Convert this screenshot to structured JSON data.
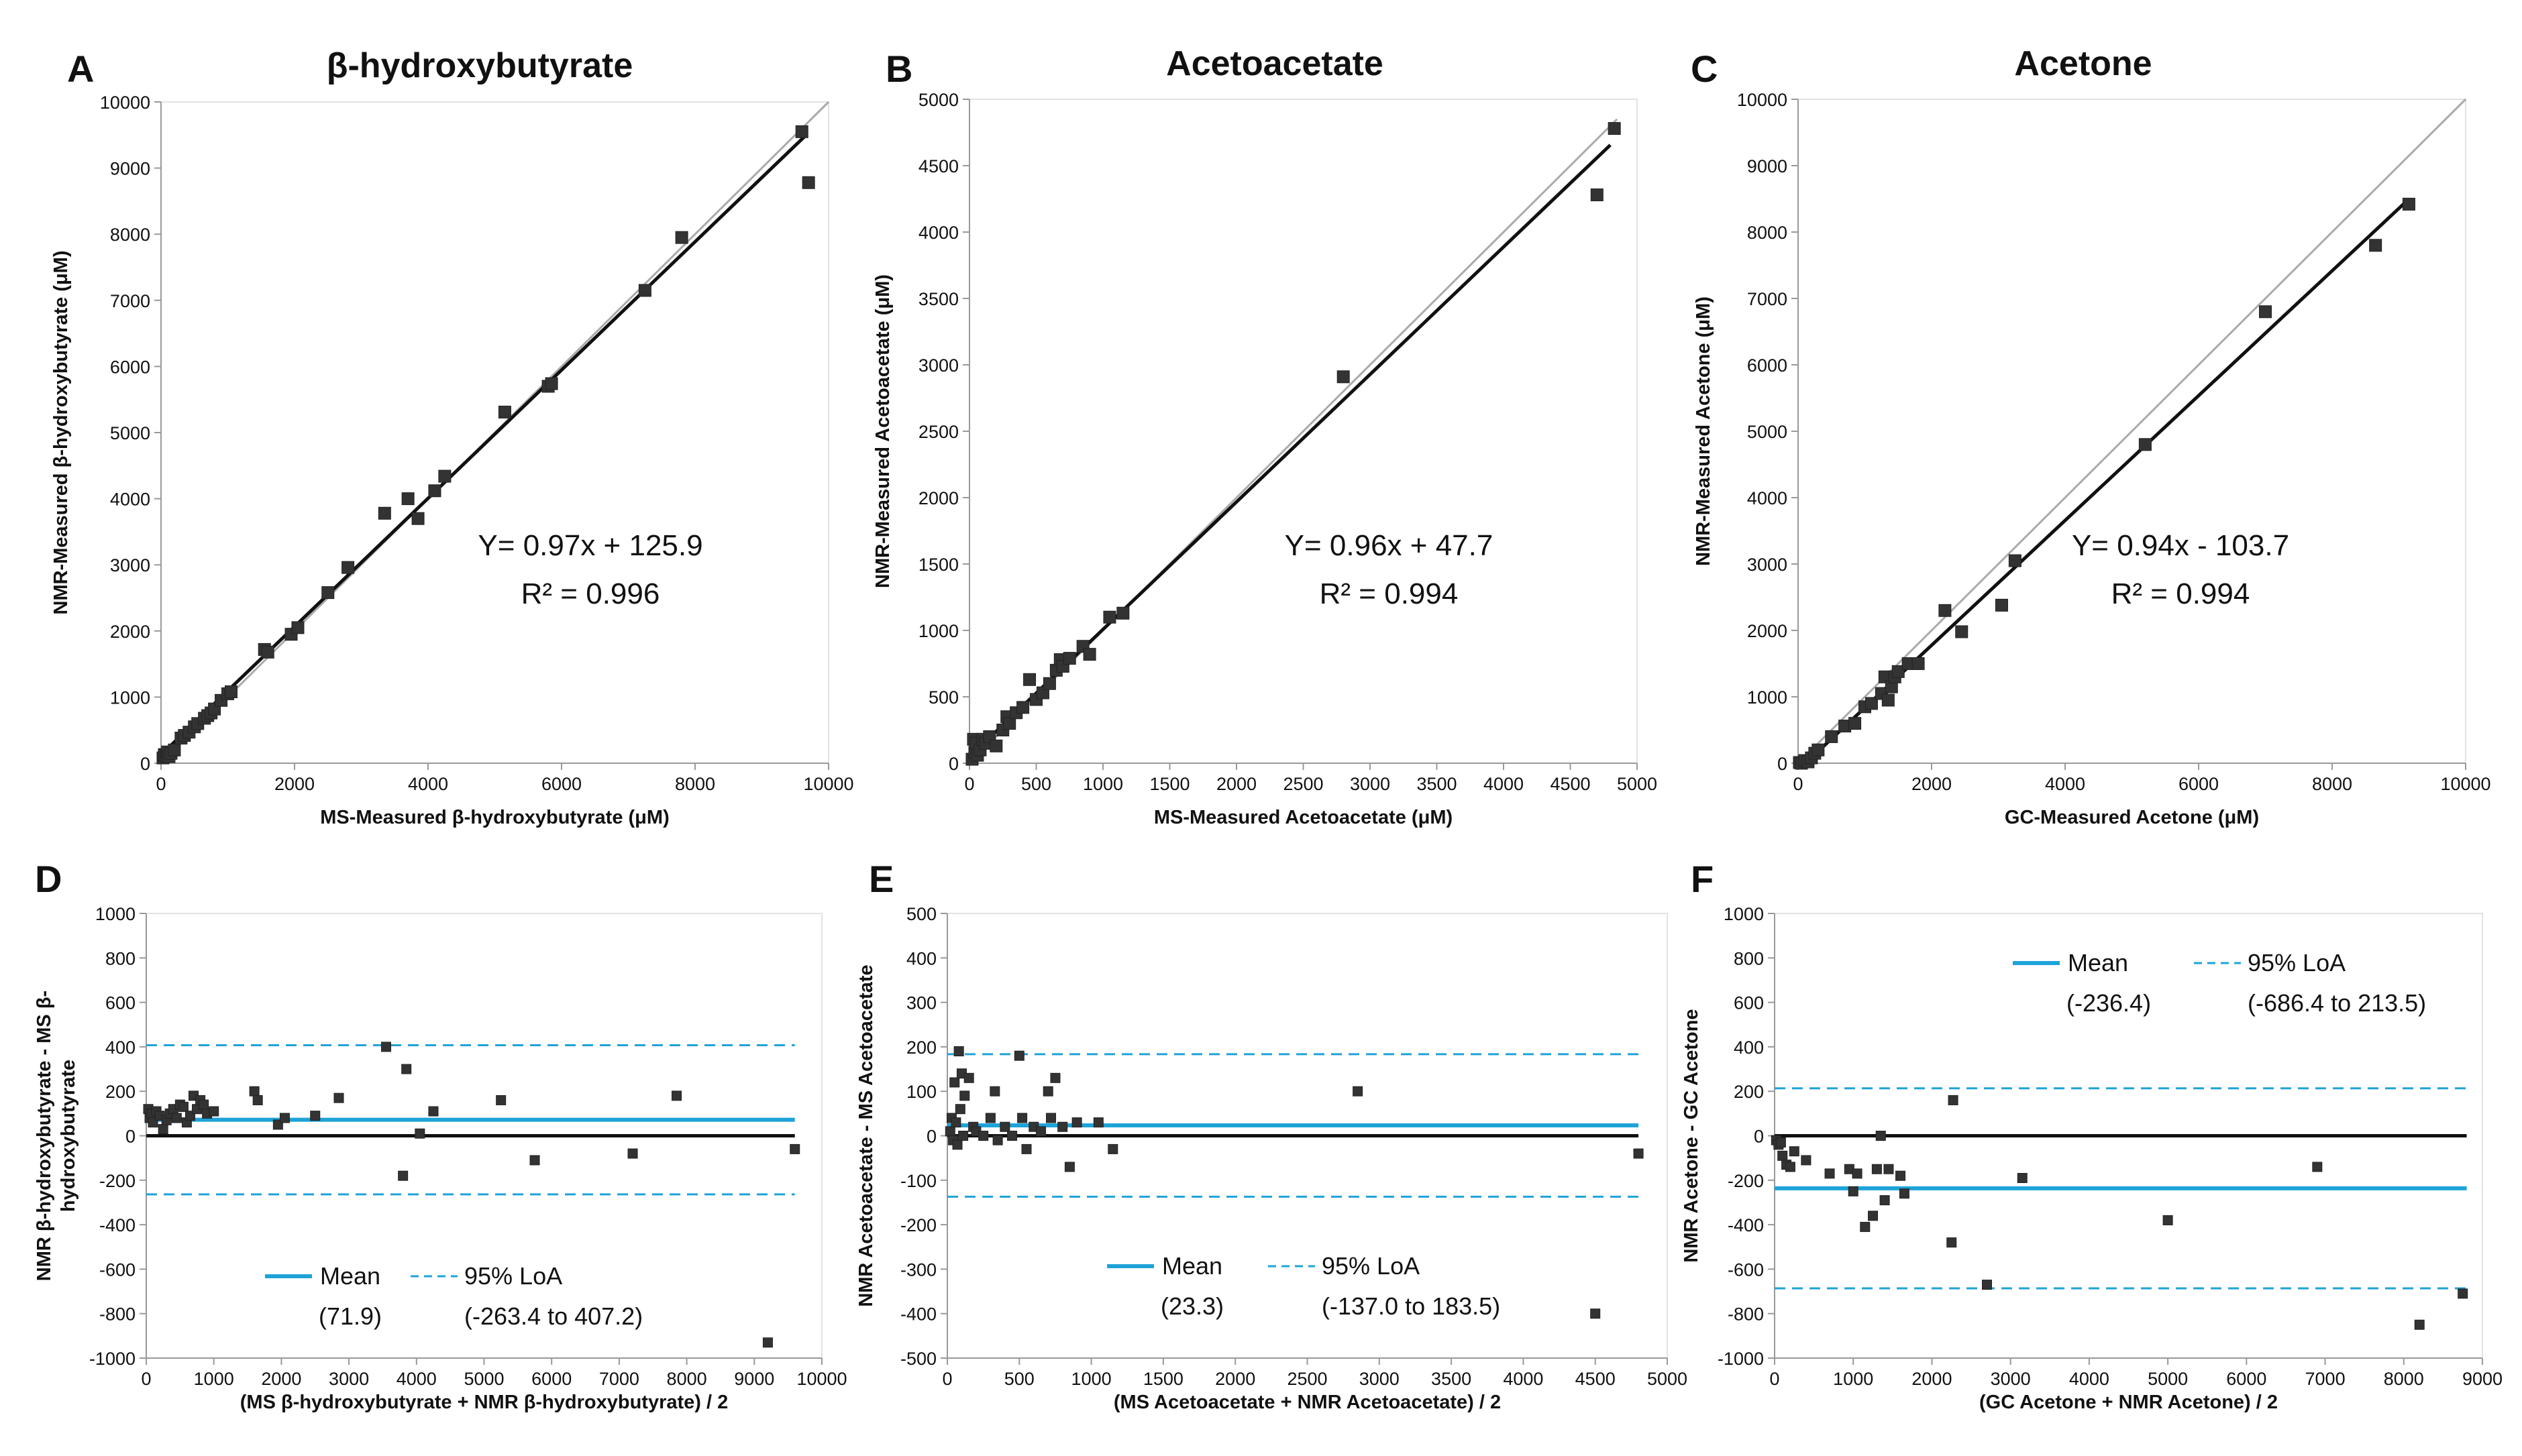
{
  "chart_data": [
    {
      "type": "scatter",
      "panel": "A",
      "title": "β-hydroxybutyrate",
      "xlabel": "MS-Measured β-hydroxybutyrate (μM)",
      "ylabel": "NMR-Measured β-hydroxybutyrate (μM)",
      "xlim": [
        0,
        10000
      ],
      "ylim": [
        0,
        10000
      ],
      "xticks": [
        "0",
        "2000",
        "4000",
        "6000",
        "8000",
        "10000"
      ],
      "yticks": [
        "0",
        "1000",
        "2000",
        "3000",
        "4000",
        "5000",
        "6000",
        "7000",
        "8000",
        "9000",
        "10000"
      ],
      "equation": "Y= 0.97x + 125.9",
      "r2_label": "R² = 0.996",
      "fit": {
        "slope": 0.97,
        "intercept": 125.9,
        "x_range": [
          0,
          9650
        ]
      },
      "identity": [
        0,
        10000
      ],
      "points": [
        [
          30,
          80
        ],
        [
          50,
          130
        ],
        [
          80,
          110
        ],
        [
          100,
          170
        ],
        [
          120,
          100
        ],
        [
          150,
          150
        ],
        [
          200,
          200
        ],
        [
          300,
          380
        ],
        [
          350,
          420
        ],
        [
          420,
          470
        ],
        [
          500,
          550
        ],
        [
          550,
          600
        ],
        [
          650,
          680
        ],
        [
          700,
          720
        ],
        [
          750,
          760
        ],
        [
          800,
          820
        ],
        [
          900,
          950
        ],
        [
          1000,
          1050
        ],
        [
          1050,
          1080
        ],
        [
          1550,
          1720
        ],
        [
          1600,
          1680
        ],
        [
          1950,
          1950
        ],
        [
          2050,
          2050
        ],
        [
          2500,
          2580
        ],
        [
          2800,
          2960
        ],
        [
          3350,
          3780
        ],
        [
          3700,
          4000
        ],
        [
          3850,
          3700
        ],
        [
          4100,
          4120
        ],
        [
          4250,
          4340
        ],
        [
          5150,
          5310
        ],
        [
          5800,
          5700
        ],
        [
          5850,
          5740
        ],
        [
          7250,
          7150
        ],
        [
          7800,
          7950
        ],
        [
          9600,
          9550
        ],
        [
          9700,
          8780
        ]
      ]
    },
    {
      "type": "scatter",
      "panel": "B",
      "title": "Acetoacetate",
      "xlabel": "MS-Measured Acetoacetate (μM)",
      "ylabel": "NMR-Measured Acetoacetate (μM)",
      "xlim": [
        0,
        5000
      ],
      "ylim": [
        0,
        5000
      ],
      "xticks": [
        "0",
        "500",
        "1000",
        "1500",
        "2000",
        "2500",
        "3000",
        "3500",
        "4000",
        "4500",
        "5000"
      ],
      "yticks": [
        "0",
        "500",
        "1000",
        "1500",
        "2000",
        "2500",
        "3000",
        "3500",
        "4000",
        "4500",
        "5000"
      ],
      "equation": "Y= 0.96x + 47.7",
      "r2_label": "R² = 0.994",
      "fit": {
        "slope": 0.96,
        "intercept": 47.7,
        "x_range": [
          0,
          4800
        ]
      },
      "identity": [
        0,
        4850
      ],
      "points": [
        [
          20,
          30
        ],
        [
          30,
          180
        ],
        [
          40,
          80
        ],
        [
          50,
          150
        ],
        [
          60,
          60
        ],
        [
          80,
          100
        ],
        [
          100,
          180
        ],
        [
          120,
          150
        ],
        [
          150,
          200
        ],
        [
          200,
          130
        ],
        [
          250,
          250
        ],
        [
          280,
          350
        ],
        [
          300,
          300
        ],
        [
          350,
          380
        ],
        [
          400,
          420
        ],
        [
          450,
          630
        ],
        [
          500,
          480
        ],
        [
          550,
          530
        ],
        [
          600,
          600
        ],
        [
          650,
          700
        ],
        [
          680,
          780
        ],
        [
          700,
          730
        ],
        [
          750,
          790
        ],
        [
          850,
          880
        ],
        [
          900,
          820
        ],
        [
          1050,
          1100
        ],
        [
          1150,
          1130
        ],
        [
          2800,
          2910
        ],
        [
          4700,
          4280
        ],
        [
          4830,
          4780
        ]
      ]
    },
    {
      "type": "scatter",
      "panel": "C",
      "title": "Acetone",
      "xlabel": "GC-Measured Acetone (μM)",
      "ylabel": "NMR-Measured Acetone (μM)",
      "xlim": [
        0,
        10000
      ],
      "ylim": [
        0,
        10000
      ],
      "xticks": [
        "0",
        "2000",
        "4000",
        "6000",
        "8000",
        "10000"
      ],
      "yticks": [
        "0",
        "1000",
        "2000",
        "3000",
        "4000",
        "5000",
        "6000",
        "7000",
        "8000",
        "9000",
        "10000"
      ],
      "equation": "Y= 0.94x - 103.7",
      "r2_label": "R² = 0.994",
      "fit": {
        "slope": 0.94,
        "intercept": -103.7,
        "x_range": [
          0,
          9150
        ]
      },
      "identity": [
        0,
        10000
      ],
      "points": [
        [
          20,
          10
        ],
        [
          50,
          0
        ],
        [
          100,
          40
        ],
        [
          150,
          20
        ],
        [
          200,
          80
        ],
        [
          250,
          150
        ],
        [
          300,
          200
        ],
        [
          500,
          400
        ],
        [
          700,
          560
        ],
        [
          850,
          600
        ],
        [
          1000,
          850
        ],
        [
          1100,
          900
        ],
        [
          1250,
          1050
        ],
        [
          1300,
          1300
        ],
        [
          1350,
          950
        ],
        [
          1400,
          1150
        ],
        [
          1450,
          1300
        ],
        [
          1500,
          1380
        ],
        [
          1650,
          1500
        ],
        [
          1800,
          1500
        ],
        [
          2200,
          2300
        ],
        [
          2450,
          1980
        ],
        [
          3050,
          2380
        ],
        [
          3250,
          3050
        ],
        [
          5200,
          4800
        ],
        [
          7000,
          6800
        ],
        [
          8650,
          7800
        ],
        [
          9150,
          8420
        ]
      ]
    },
    {
      "type": "scatter",
      "panel": "D",
      "xlabel": "(MS β-hydroxybutyrate + NMR β-hydroxybutyrate) / 2",
      "ylabel_lines": [
        "NMR β-hydroxybutyrate - MS β-",
        "hydroxybutyrate"
      ],
      "xlim": [
        0,
        10000
      ],
      "ylim": [
        -1000,
        1000
      ],
      "xticks": [
        "0",
        "1000",
        "2000",
        "3000",
        "4000",
        "5000",
        "6000",
        "7000",
        "8000",
        "9000",
        "10000"
      ],
      "yticks": [
        "-1000",
        "-800",
        "-600",
        "-400",
        "-200",
        "0",
        "200",
        "400",
        "600",
        "800",
        "1000"
      ],
      "mean": 71.9,
      "loa": [
        -263.4,
        407.2
      ],
      "line_x_range": [
        0,
        9600
      ],
      "legend": {
        "mean_label": "Mean",
        "loa_label": "95% LoA",
        "mean_value": "(71.9)",
        "loa_value": "(-263.4 to 407.2)"
      },
      "points": [
        [
          30,
          120
        ],
        [
          50,
          80
        ],
        [
          80,
          100
        ],
        [
          100,
          60
        ],
        [
          150,
          110
        ],
        [
          200,
          90
        ],
        [
          250,
          30
        ],
        [
          300,
          70
        ],
        [
          350,
          100
        ],
        [
          400,
          120
        ],
        [
          450,
          80
        ],
        [
          500,
          140
        ],
        [
          550,
          130
        ],
        [
          600,
          60
        ],
        [
          650,
          90
        ],
        [
          700,
          180
        ],
        [
          750,
          120
        ],
        [
          800,
          160
        ],
        [
          850,
          140
        ],
        [
          900,
          100
        ],
        [
          1000,
          110
        ],
        [
          1600,
          200
        ],
        [
          1650,
          160
        ],
        [
          1950,
          50
        ],
        [
          2050,
          80
        ],
        [
          2500,
          90
        ],
        [
          2850,
          170
        ],
        [
          3550,
          400
        ],
        [
          3800,
          -180
        ],
        [
          3850,
          300
        ],
        [
          4050,
          10
        ],
        [
          4250,
          110
        ],
        [
          5250,
          160
        ],
        [
          5750,
          -110
        ],
        [
          7200,
          -80
        ],
        [
          7850,
          180
        ],
        [
          9200,
          -930
        ],
        [
          9600,
          -60
        ]
      ]
    },
    {
      "type": "scatter",
      "panel": "E",
      "xlabel": "(MS Acetoacetate + NMR Acetoacetate) / 2",
      "ylabel": "NMR Acetoacetate - MS Acetoacetate",
      "xlim": [
        0,
        5000
      ],
      "ylim": [
        -500,
        500
      ],
      "xticks": [
        "0",
        "500",
        "1000",
        "1500",
        "2000",
        "2500",
        "3000",
        "3500",
        "4000",
        "4500",
        "5000"
      ],
      "yticks": [
        "-500",
        "-400",
        "-300",
        "-200",
        "-100",
        "0",
        "100",
        "200",
        "300",
        "400",
        "500"
      ],
      "mean": 23.3,
      "loa": [
        -137.0,
        183.5
      ],
      "line_x_range": [
        0,
        4800
      ],
      "legend": {
        "mean_label": "Mean",
        "loa_label": "95% LoA",
        "mean_value": "(23.3)",
        "loa_value": "(-137.0 to 183.5)"
      },
      "points": [
        [
          20,
          10
        ],
        [
          30,
          40
        ],
        [
          40,
          -10
        ],
        [
          50,
          120
        ],
        [
          60,
          30
        ],
        [
          70,
          -20
        ],
        [
          80,
          190
        ],
        [
          90,
          60
        ],
        [
          100,
          140
        ],
        [
          110,
          0
        ],
        [
          120,
          90
        ],
        [
          150,
          130
        ],
        [
          180,
          20
        ],
        [
          200,
          10
        ],
        [
          250,
          0
        ],
        [
          300,
          40
        ],
        [
          330,
          100
        ],
        [
          350,
          -10
        ],
        [
          400,
          20
        ],
        [
          450,
          0
        ],
        [
          500,
          180
        ],
        [
          520,
          40
        ],
        [
          550,
          -30
        ],
        [
          600,
          20
        ],
        [
          650,
          10
        ],
        [
          700,
          100
        ],
        [
          720,
          40
        ],
        [
          750,
          130
        ],
        [
          800,
          20
        ],
        [
          850,
          -70
        ],
        [
          900,
          30
        ],
        [
          1050,
          30
        ],
        [
          1150,
          -30
        ],
        [
          2850,
          100
        ],
        [
          4500,
          -400
        ],
        [
          4800,
          -40
        ]
      ]
    },
    {
      "type": "scatter",
      "panel": "F",
      "xlabel": "(GC Acetone + NMR Acetone) / 2",
      "ylabel": "NMR Acetone - GC Acetone",
      "xlim": [
        0,
        9000
      ],
      "ylim": [
        -1000,
        1000
      ],
      "xticks": [
        "0",
        "1000",
        "2000",
        "3000",
        "4000",
        "5000",
        "6000",
        "7000",
        "8000",
        "9000"
      ],
      "yticks": [
        "-1000",
        "-800",
        "-600",
        "-400",
        "-200",
        "0",
        "200",
        "400",
        "600",
        "800",
        "1000"
      ],
      "mean": -236.4,
      "loa": [
        -686.4,
        213.5
      ],
      "line_x_range": [
        0,
        8800
      ],
      "legend": {
        "mean_label": "Mean",
        "loa_label": "95% LoA",
        "mean_value": "(-236.4)",
        "loa_value": "(-686.4 to 213.5)"
      },
      "points": [
        [
          20,
          -20
        ],
        [
          50,
          -40
        ],
        [
          80,
          -30
        ],
        [
          100,
          -90
        ],
        [
          150,
          -130
        ],
        [
          200,
          -140
        ],
        [
          250,
          -70
        ],
        [
          400,
          -110
        ],
        [
          700,
          -170
        ],
        [
          950,
          -150
        ],
        [
          1000,
          -250
        ],
        [
          1050,
          -170
        ],
        [
          1150,
          -410
        ],
        [
          1250,
          -360
        ],
        [
          1300,
          -150
        ],
        [
          1350,
          0
        ],
        [
          1400,
          -290
        ],
        [
          1450,
          -150
        ],
        [
          1600,
          -180
        ],
        [
          1650,
          -260
        ],
        [
          2250,
          -480
        ],
        [
          2270,
          160
        ],
        [
          2700,
          -670
        ],
        [
          3150,
          -190
        ],
        [
          5000,
          -380
        ],
        [
          6900,
          -140
        ],
        [
          8200,
          -850
        ],
        [
          8750,
          -710
        ]
      ]
    }
  ]
}
